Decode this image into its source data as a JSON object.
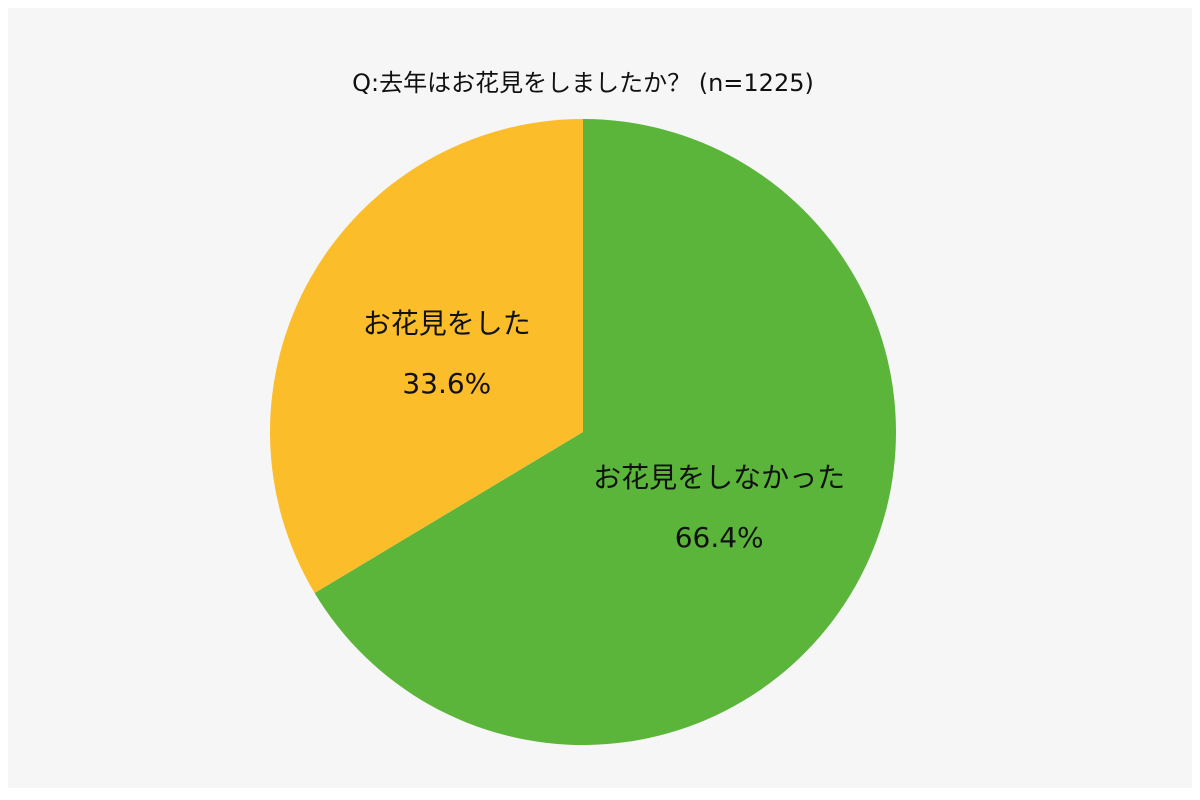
{
  "chart_data": {
    "type": "pie",
    "title": "Q:去年はお花見をしましたか？ (n=1225)",
    "categories": [
      "お花見をしなかった",
      "お花見をした"
    ],
    "values": [
      66.4,
      33.6
    ],
    "value_labels": [
      "66.4%",
      "33.6%"
    ],
    "colors": [
      "#5bb53a",
      "#fcbd2b"
    ]
  }
}
